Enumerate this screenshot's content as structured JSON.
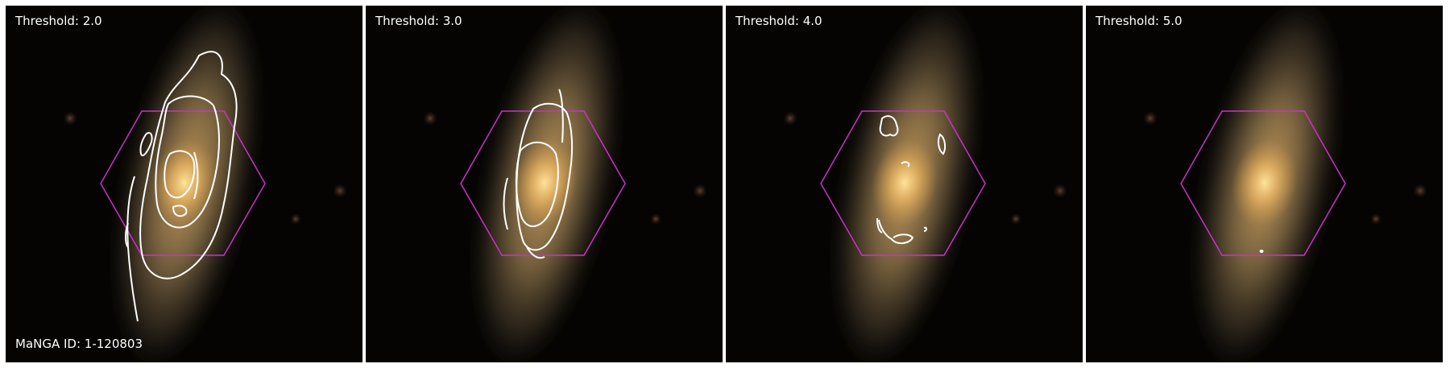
{
  "panels": [
    {
      "threshold_label": "Threshold: 2.0"
    },
    {
      "threshold_label": "Threshold: 3.0"
    },
    {
      "threshold_label": "Threshold: 4.0"
    },
    {
      "threshold_label": "Threshold: 5.0"
    }
  ],
  "manga_id_label": "MaNGA ID: 1-120803",
  "colors": {
    "background": "#000000",
    "galaxy_core": "#ffd27a",
    "galaxy_disk": "#8a7650",
    "hexagon": "#c833c8",
    "contour": "#ffffff"
  }
}
